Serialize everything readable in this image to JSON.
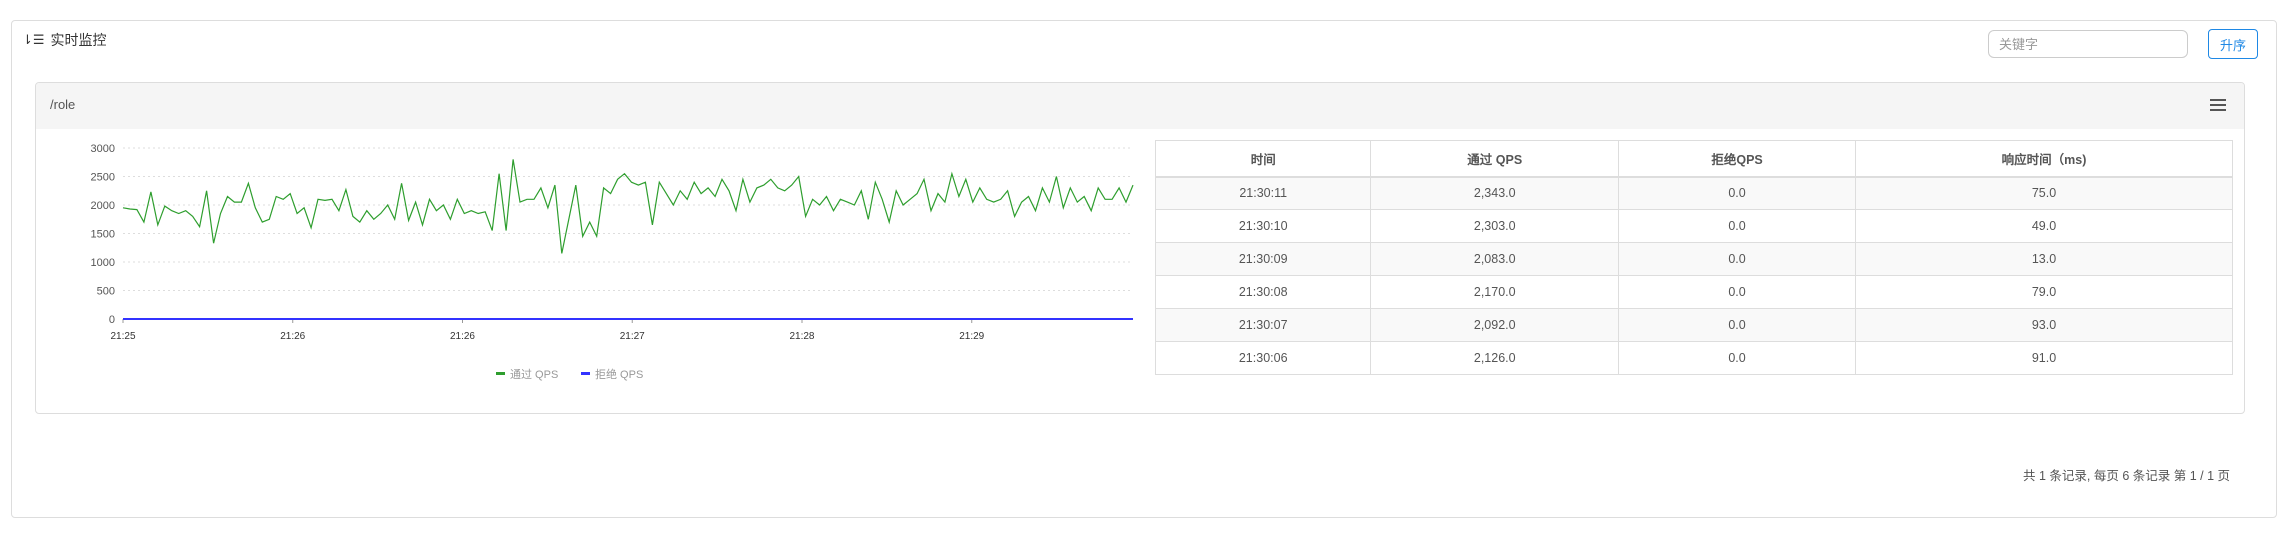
{
  "header": {
    "title": "实时监控",
    "icon": "sort-icon",
    "search_placeholder": "关键字",
    "sort_button": "升序"
  },
  "panel": {
    "title": "/role",
    "menu_icon": "menu-icon"
  },
  "chart_data": {
    "type": "line",
    "yticks": [
      "0",
      "500",
      "1000",
      "1500",
      "2000",
      "2500",
      "3000"
    ],
    "ylim": [
      0,
      3000
    ],
    "xticks": [
      "21:25",
      "21:26",
      "21:26",
      "21:27",
      "21:28",
      "21:29"
    ],
    "grid": true,
    "legend_placement": "bottom",
    "series": [
      {
        "name": "通过 QPS",
        "color": "#2e9e2e",
        "values": [
          1950,
          1930,
          1920,
          1700,
          2230,
          1650,
          1980,
          1900,
          1850,
          1900,
          1800,
          1620,
          2250,
          1330,
          1850,
          2150,
          2050,
          2050,
          2380,
          1950,
          1700,
          1750,
          2150,
          2100,
          2200,
          1850,
          1950,
          1600,
          2100,
          2080,
          2100,
          1900,
          2270,
          1800,
          1700,
          1900,
          1750,
          1850,
          2000,
          1750,
          2380,
          1730,
          2050,
          1650,
          2100,
          1900,
          2000,
          1750,
          2100,
          1850,
          1900,
          1850,
          1880,
          1550,
          2550,
          1550,
          2800,
          2050,
          2100,
          2100,
          2300,
          1950,
          2350,
          1150,
          1750,
          2350,
          1450,
          1700,
          1450,
          2300,
          2200,
          2450,
          2550,
          2400,
          2350,
          2400,
          1650,
          2400,
          2200,
          2000,
          2250,
          2100,
          2400,
          2200,
          2300,
          2150,
          2450,
          2250,
          1900,
          2450,
          2050,
          2300,
          2350,
          2450,
          2300,
          2250,
          2350,
          2500,
          1800,
          2100,
          2000,
          2150,
          1900,
          2100,
          2050,
          2000,
          2250,
          1750,
          2400,
          2100,
          1700,
          2250,
          2000,
          2100,
          2200,
          2450,
          1900,
          2200,
          2050,
          2550,
          2150,
          2450,
          2050,
          2300,
          2100,
          2050,
          2100,
          2250,
          1800,
          2050,
          2150,
          1900,
          2300,
          2050,
          2500,
          1950,
          2300,
          2050,
          2150,
          1900,
          2300,
          2100,
          2100,
          2300,
          2050,
          2350
        ]
      },
      {
        "name": "拒绝 QPS",
        "color": "#3333ff",
        "values": [
          0,
          0
        ]
      }
    ]
  },
  "table": {
    "columns": [
      "时间",
      "通过 QPS",
      "拒绝QPS",
      "响应时间（ms)"
    ],
    "rows": [
      [
        "21:30:11",
        "2,343.0",
        "0.0",
        "75.0"
      ],
      [
        "21:30:10",
        "2,303.0",
        "0.0",
        "49.0"
      ],
      [
        "21:30:09",
        "2,083.0",
        "0.0",
        "13.0"
      ],
      [
        "21:30:08",
        "2,170.0",
        "0.0",
        "79.0"
      ],
      [
        "21:30:07",
        "2,092.0",
        "0.0",
        "93.0"
      ],
      [
        "21:30:06",
        "2,126.0",
        "0.0",
        "91.0"
      ]
    ]
  },
  "pagination": {
    "text": "共 1 条记录, 每页 6 条记录 第 1 / 1 页"
  }
}
